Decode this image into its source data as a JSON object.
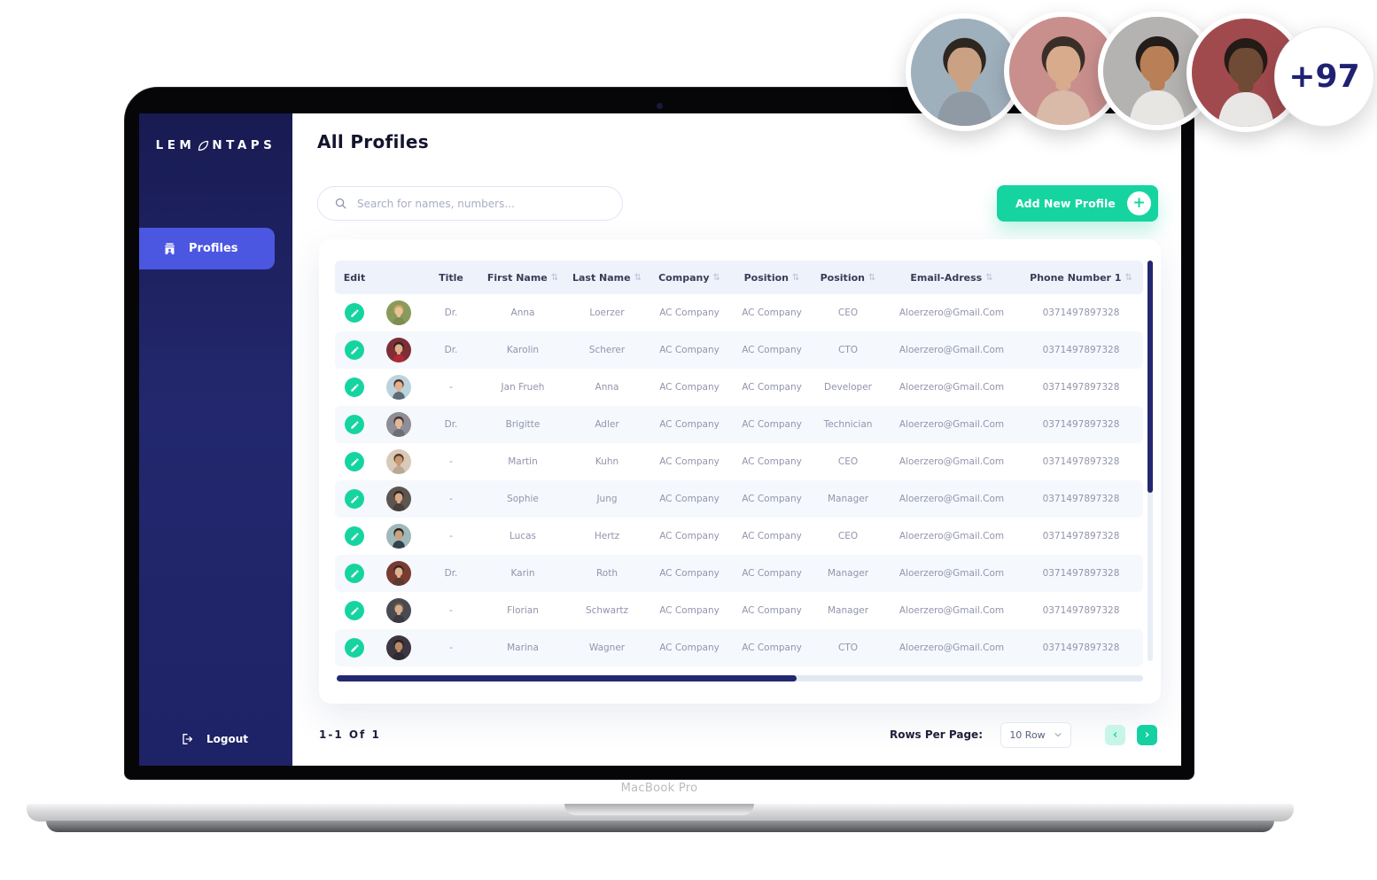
{
  "page": {
    "device_label": "MacBook Pro"
  },
  "sidebar": {
    "logo_pre": "LEM",
    "logo_post": "NTAPS",
    "items": [
      {
        "label": "Profiles",
        "active": true
      }
    ],
    "logout_label": "Logout"
  },
  "header": {
    "title": "All Profiles",
    "search_placeholder": "Search for names, numbers...",
    "add_button_label": "Add New Profile"
  },
  "avatars_overlay": {
    "badge_label": "+97",
    "people": [
      {
        "bg": "#9fb0bd",
        "skin": "#caa183",
        "hair": "#2e2620",
        "shirt": "#8f9aa4"
      },
      {
        "bg": "#c98f8d",
        "skin": "#d8ab8d",
        "hair": "#3a2e28",
        "shirt": "#d9b9a8"
      },
      {
        "bg": "#b5b3b1",
        "skin": "#b97f56",
        "hair": "#221d1a",
        "shirt": "#e8e6e2"
      },
      {
        "bg": "#a14a4e",
        "skin": "#6f4a35",
        "hair": "#241a16",
        "shirt": "#e9e7e6"
      }
    ]
  },
  "table": {
    "columns": [
      {
        "label": "Edit",
        "sortable": false
      },
      {
        "label": "Title",
        "sortable": false
      },
      {
        "label": "First Name",
        "sortable": true
      },
      {
        "label": "Last Name",
        "sortable": true
      },
      {
        "label": "Company",
        "sortable": true
      },
      {
        "label": "Position",
        "sortable": true
      },
      {
        "label": "Position",
        "sortable": true
      },
      {
        "label": "Email-Adress",
        "sortable": true
      },
      {
        "label": "Phone Number 1",
        "sortable": true
      }
    ],
    "rows": [
      {
        "title": "Dr.",
        "first_name": "Anna",
        "last_name": "Loerzer",
        "company": "AC Company",
        "position": "AC Company",
        "position2": "CEO",
        "email": "Aloerzero@Gmail.Com",
        "phone": "0371497897328",
        "avatar": {
          "bg": "#8a9a5b",
          "skin": "#e8c39a",
          "hair": "#c9a35c",
          "shirt": "#7d8c52"
        }
      },
      {
        "title": "Dr.",
        "first_name": "Karolin",
        "last_name": "Scherer",
        "company": "AC Company",
        "position": "AC Company",
        "position2": "CTO",
        "email": "Aloerzero@Gmail.Com",
        "phone": "0371497897328",
        "avatar": {
          "bg": "#7d2f35",
          "skin": "#e3b08c",
          "hair": "#2c2220",
          "shirt": "#b02a33"
        }
      },
      {
        "title": "-",
        "first_name": "Jan Frueh",
        "last_name": "Anna",
        "company": "AC Company",
        "position": "AC Company",
        "position2": "Developer",
        "email": "Aloerzero@Gmail.Com",
        "phone": "0371497897328",
        "avatar": {
          "bg": "#bcd3de",
          "skin": "#e0b18d",
          "hair": "#4a3526",
          "shirt": "#5d6b75"
        }
      },
      {
        "title": "Dr.",
        "first_name": "Brigitte",
        "last_name": "Adler",
        "company": "AC Company",
        "position": "AC Company",
        "position2": "Technician",
        "email": "Aloerzero@Gmail.Com",
        "phone": "0371497897328",
        "avatar": {
          "bg": "#8e8e96",
          "skin": "#e3b79a",
          "hair": "#3a3233",
          "shirt": "#6e6e76"
        }
      },
      {
        "title": "-",
        "first_name": "Martin",
        "last_name": "Kuhn",
        "company": "AC Company",
        "position": "AC Company",
        "position2": "CEO",
        "email": "Aloerzero@Gmail.Com",
        "phone": "0371497897328",
        "avatar": {
          "bg": "#d9c9b8",
          "skin": "#c99871",
          "hair": "#4f3a2a",
          "shirt": "#b8a894"
        }
      },
      {
        "title": "-",
        "first_name": "Sophie",
        "last_name": "Jung",
        "company": "AC Company",
        "position": "AC Company",
        "position2": "Manager",
        "email": "Aloerzero@Gmail.Com",
        "phone": "0371497897328",
        "avatar": {
          "bg": "#5d5550",
          "skin": "#d9a886",
          "hair": "#2b2422",
          "shirt": "#46403c"
        }
      },
      {
        "title": "-",
        "first_name": "Lucas",
        "last_name": "Hertz",
        "company": "AC Company",
        "position": "AC Company",
        "position2": "CEO",
        "email": "Aloerzero@Gmail.Com",
        "phone": "0371497897328",
        "avatar": {
          "bg": "#9fb8ba",
          "skin": "#caa183",
          "hair": "#27211e",
          "shirt": "#33424a"
        }
      },
      {
        "title": "Dr.",
        "first_name": "Karin",
        "last_name": "Roth",
        "company": "AC Company",
        "position": "AC Company",
        "position2": "Manager",
        "email": "Aloerzero@Gmail.Com",
        "phone": "0371497897328",
        "avatar": {
          "bg": "#7a3b33",
          "skin": "#e3b08c",
          "hair": "#322624",
          "shirt": "#5c3a30"
        }
      },
      {
        "title": "-",
        "first_name": "Florian",
        "last_name": "Schwartz",
        "company": "AC Company",
        "position": "AC Company",
        "position2": "Manager",
        "email": "Aloerzero@Gmail.Com",
        "phone": "0371497897328",
        "avatar": {
          "bg": "#4a4a52",
          "skin": "#d8ab8d",
          "hair": "#6b5a44",
          "shirt": "#3a3a40"
        }
      },
      {
        "title": "-",
        "first_name": "Marina",
        "last_name": "Wagner",
        "company": "AC Company",
        "position": "AC Company",
        "position2": "CTO",
        "email": "Aloerzero@Gmail.Com",
        "phone": "0371497897328",
        "avatar": {
          "bg": "#3c3640",
          "skin": "#b98b68",
          "hair": "#241f22",
          "shirt": "#2e2a32"
        }
      }
    ]
  },
  "footer": {
    "range_label": "1-1 Of 1",
    "rows_per_page_label": "Rows Per Page:",
    "rows_per_page_value": "10 Row"
  },
  "colors": {
    "accent_teal": "#16d4a0",
    "sidebar_navy": "#1e2266",
    "active_item_indigo": "#4b56e1",
    "badge_text_navy": "#1f2273",
    "table_header_bg": "#eef2fb",
    "row_alt_bg": "#f5f8fd",
    "scrollbar_navy": "#232870"
  }
}
